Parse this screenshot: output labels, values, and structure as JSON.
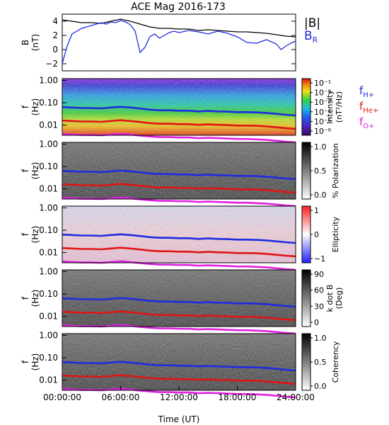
{
  "chart_data": {
    "type": "multi-panel spectrogram",
    "title": "ACE Mag 2016-173",
    "x_axis": {
      "label": "Time (UT)",
      "range_hours": [
        0,
        24
      ],
      "ticks": [
        "00:00:00",
        "06:00:00",
        "12:00:00",
        "18:00:00",
        "24:00:00"
      ]
    },
    "colors": {
      "B_total": "#000000",
      "B_R": "#1f2be0",
      "f_H+": "#1f2be0",
      "f_He+": "#e01515",
      "f_O+": "#e020e0"
    },
    "field_panel": {
      "ylabel_top": "B",
      "ylabel_bottom": "(nT)",
      "ylim": [
        -3,
        5
      ],
      "yticks": [
        4,
        2,
        0,
        -2
      ],
      "ytick_labels": [
        "4",
        "2",
        "0",
        "−2"
      ],
      "legend": [
        {
          "label": "|B|",
          "color": "#000000"
        },
        {
          "label": "B",
          "sub": "R",
          "color": "#1f2be0"
        }
      ],
      "series": [
        {
          "name": "|B|",
          "color": "#000000",
          "x": [
            0,
            1,
            2,
            3,
            4,
            5,
            6,
            7,
            8,
            9,
            10,
            11,
            12,
            13,
            14,
            15,
            16,
            17,
            18,
            19,
            20,
            21,
            22,
            23,
            24
          ],
          "y": [
            4.2,
            4.0,
            3.8,
            3.8,
            3.7,
            4.0,
            4.3,
            4.0,
            3.6,
            3.2,
            3.0,
            3.0,
            2.9,
            2.9,
            2.7,
            2.8,
            2.7,
            2.6,
            2.5,
            2.5,
            2.4,
            2.3,
            2.1,
            1.9,
            1.8
          ]
        },
        {
          "name": "B_R",
          "color": "#1f2be0",
          "x": [
            0,
            0.5,
            1,
            1.5,
            2,
            2.5,
            3,
            3.5,
            4,
            4.5,
            5,
            5.5,
            6,
            6.5,
            7,
            7.5,
            8,
            8.5,
            9,
            9.5,
            10,
            10.5,
            11,
            11.5,
            12,
            13,
            14,
            15,
            16,
            17,
            18,
            19,
            20,
            21,
            22,
            22.5,
            23,
            23.5,
            24
          ],
          "y": [
            -2.0,
            0.5,
            2.2,
            2.6,
            3.0,
            3.2,
            3.4,
            3.6,
            3.8,
            3.6,
            3.9,
            3.8,
            4.1,
            3.9,
            3.5,
            2.6,
            -0.4,
            0.3,
            1.8,
            2.2,
            1.6,
            2.0,
            2.4,
            2.6,
            2.4,
            2.7,
            2.5,
            2.2,
            2.6,
            2.3,
            1.8,
            1.0,
            0.9,
            1.4,
            0.8,
            0.0,
            0.5,
            0.9,
            1.2
          ]
        }
      ]
    },
    "ion_gyrofrequencies": {
      "x": [
        0,
        1,
        2,
        3,
        4,
        5,
        6,
        7,
        8,
        9,
        10,
        11,
        12,
        13,
        14,
        15,
        16,
        17,
        18,
        19,
        20,
        21,
        22,
        23,
        24
      ],
      "f_H+_hz": [
        0.064,
        0.061,
        0.058,
        0.058,
        0.056,
        0.061,
        0.066,
        0.061,
        0.055,
        0.049,
        0.046,
        0.046,
        0.044,
        0.044,
        0.041,
        0.043,
        0.041,
        0.04,
        0.038,
        0.038,
        0.037,
        0.035,
        0.032,
        0.029,
        0.027
      ],
      "f_He+_hz": [
        0.016,
        0.0153,
        0.0145,
        0.0145,
        0.014,
        0.0153,
        0.0165,
        0.0153,
        0.0138,
        0.0123,
        0.0115,
        0.0115,
        0.011,
        0.011,
        0.0103,
        0.0108,
        0.0103,
        0.01,
        0.0095,
        0.0095,
        0.0093,
        0.0088,
        0.008,
        0.0073,
        0.0068
      ],
      "f_O+_hz": [
        0.004,
        0.0038,
        0.0036,
        0.0036,
        0.0035,
        0.0038,
        0.0041,
        0.0038,
        0.0034,
        0.0031,
        0.0029,
        0.0029,
        0.0028,
        0.0028,
        0.0026,
        0.0027,
        0.0026,
        0.0025,
        0.0024,
        0.0024,
        0.0023,
        0.0022,
        0.002,
        0.0018,
        0.0017
      ]
    },
    "spectrogram_panels": [
      {
        "id": "intensity",
        "ylabel_top": "f",
        "ylabel_bottom": "(Hz)",
        "ylim_hz": [
          0.0035,
          1.2
        ],
        "yscale": "log",
        "yticks": [
          "1.00",
          "0.10",
          "0.01"
        ],
        "colormap": "rainbow",
        "colorbar_label_1": "Intensity",
        "colorbar_label_2": "(nT²/Hz)",
        "colorbar_ticks": [
          "10⁻¹",
          "10⁻²",
          "10⁻³",
          "10⁻⁴",
          "10⁻⁵",
          "10⁻⁶"
        ],
        "gyro_legend": [
          {
            "label": "f",
            "sub": "H+",
            "color": "#1f2be0"
          },
          {
            "label": "f",
            "sub": "He+",
            "color": "#e01515"
          },
          {
            "label": "f",
            "sub": "O+",
            "color": "#e020e0"
          }
        ]
      },
      {
        "id": "polarization",
        "ylabel_top": "f",
        "ylabel_bottom": "(Hz)",
        "yticks": [
          "1.00",
          "0.10",
          "0.01"
        ],
        "colormap": "gray",
        "colorbar_label_1": "% Polarization",
        "colorbar_ticks": [
          "1.0",
          "0.5",
          "0.0"
        ]
      },
      {
        "id": "ellipticity",
        "ylabel_top": "f",
        "ylabel_bottom": "(Hz)",
        "yticks": [
          "1.00",
          "0.10",
          "0.01"
        ],
        "colormap": "blue-white-red",
        "colorbar_label_1": "Ellipticity",
        "colorbar_ticks": [
          "1",
          "0",
          "−1"
        ]
      },
      {
        "id": "k-dot-b",
        "ylabel_top": "f",
        "ylabel_bottom": "(Hz)",
        "yticks": [
          "1.00",
          "0.10",
          "0.01"
        ],
        "colormap": "gray",
        "colorbar_label_1": "k dot B",
        "colorbar_label_2": "(Deg)",
        "colorbar_ticks": [
          "90",
          "60",
          "30",
          "0"
        ]
      },
      {
        "id": "coherency",
        "ylabel_top": "f",
        "ylabel_bottom": "(Hz)",
        "yticks": [
          "1.00",
          "0.10",
          "0.01"
        ],
        "colormap": "gray",
        "colorbar_label_1": "Coherency",
        "colorbar_ticks": [
          "1.0",
          "0.5",
          "0.0"
        ]
      }
    ]
  }
}
